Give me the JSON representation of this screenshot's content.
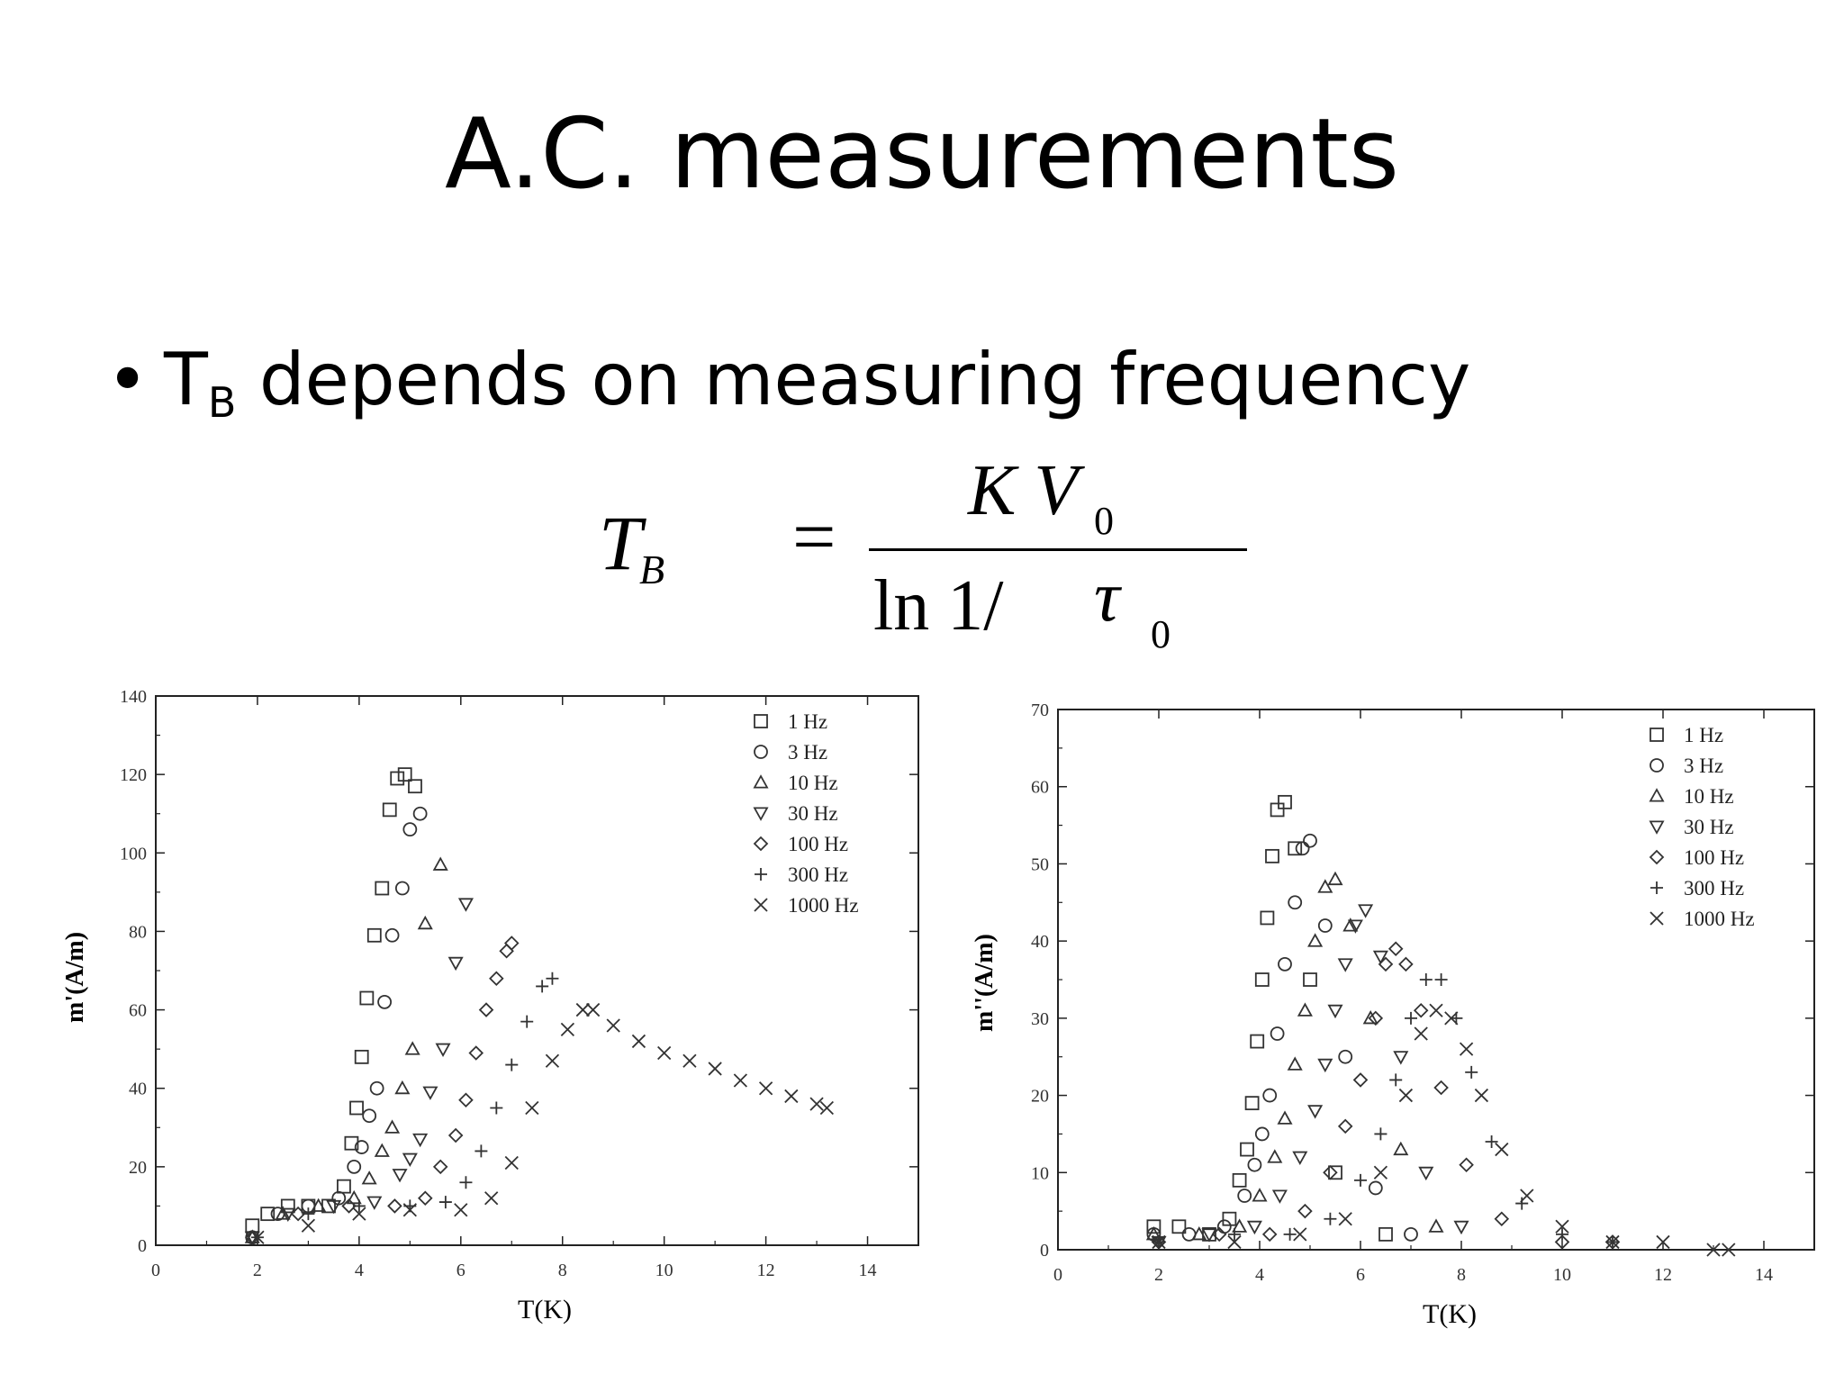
{
  "slide": {
    "title": "A.C. measurements",
    "bullet": {
      "main": "T",
      "subscript": "B",
      "rest": " depends on measuring frequency"
    }
  },
  "formula": {
    "lhs": "T",
    "lhs_sub": "B",
    "equals": "=",
    "numerator": "K V",
    "numerator_sub": "0",
    "denominator": "ln 1/ ",
    "denominator_tau": "τ",
    "denominator_sub": "0"
  },
  "chart_data": [
    {
      "type": "scatter",
      "title": "",
      "xlabel": "T(K)",
      "ylabel": "m'(A/m)",
      "xlim": [
        0,
        15
      ],
      "ylim": [
        0,
        140
      ],
      "xticks": [
        0,
        2,
        4,
        6,
        8,
        10,
        12,
        14
      ],
      "yticks": [
        0,
        20,
        40,
        60,
        80,
        100,
        120,
        140
      ],
      "grid": false,
      "legend": "top-right",
      "series": [
        {
          "name": "1 Hz",
          "marker": "square",
          "x": [
            1.9,
            2.2,
            2.6,
            3.0,
            3.4,
            3.7,
            3.85,
            3.95,
            4.05,
            4.15,
            4.3,
            4.45,
            4.6,
            4.75,
            4.9,
            5.1
          ],
          "y": [
            5,
            8,
            10,
            10,
            10,
            15,
            26,
            35,
            48,
            63,
            79,
            91,
            111,
            119,
            120,
            117
          ]
        },
        {
          "name": "3 Hz",
          "marker": "circle",
          "x": [
            1.9,
            2.4,
            3.0,
            3.6,
            3.9,
            4.05,
            4.2,
            4.35,
            4.5,
            4.65,
            4.85,
            5.0,
            5.2
          ],
          "y": [
            2,
            8,
            10,
            12,
            20,
            25,
            33,
            40,
            62,
            79,
            91,
            106,
            110
          ]
        },
        {
          "name": "10 Hz",
          "marker": "triangle-up",
          "x": [
            1.9,
            2.5,
            3.2,
            3.9,
            4.2,
            4.45,
            4.65,
            4.85,
            5.05,
            5.3,
            5.6
          ],
          "y": [
            2,
            8,
            10,
            12,
            17,
            24,
            30,
            40,
            50,
            82,
            97
          ]
        },
        {
          "name": "30 Hz",
          "marker": "triangle-down",
          "x": [
            1.9,
            2.6,
            3.5,
            4.3,
            4.8,
            5.0,
            5.2,
            5.4,
            5.65,
            5.9,
            6.1
          ],
          "y": [
            2,
            8,
            10,
            11,
            18,
            22,
            27,
            39,
            50,
            72,
            87
          ]
        },
        {
          "name": "100 Hz",
          "marker": "diamond",
          "x": [
            1.9,
            2.8,
            3.8,
            4.7,
            5.3,
            5.6,
            5.9,
            6.1,
            6.3,
            6.5,
            6.7,
            6.9,
            7.0
          ],
          "y": [
            2,
            8,
            10,
            10,
            12,
            20,
            28,
            37,
            49,
            60,
            68,
            75,
            77
          ]
        },
        {
          "name": "300 Hz",
          "marker": "plus",
          "x": [
            2.0,
            3.0,
            4.0,
            5.0,
            5.7,
            6.1,
            6.4,
            6.7,
            7.0,
            7.3,
            7.6,
            7.8
          ],
          "y": [
            2,
            8,
            10,
            10,
            11,
            16,
            24,
            35,
            46,
            57,
            66,
            68
          ]
        },
        {
          "name": "1000 Hz",
          "marker": "cross",
          "x": [
            2.0,
            3.0,
            4.0,
            5.0,
            6.0,
            6.6,
            7.0,
            7.4,
            7.8,
            8.1,
            8.4,
            8.6,
            9.0,
            9.5,
            10.0,
            10.5,
            11.0,
            11.5,
            12.0,
            12.5,
            13.0,
            13.2
          ],
          "y": [
            2,
            5,
            8,
            9,
            9,
            12,
            21,
            35,
            47,
            55,
            60,
            60,
            56,
            52,
            49,
            47,
            45,
            42,
            40,
            38,
            36,
            35
          ]
        }
      ]
    },
    {
      "type": "scatter",
      "title": "",
      "xlabel": "T(K)",
      "ylabel": "m''(A/m)",
      "xlim": [
        0,
        15
      ],
      "ylim": [
        0,
        70
      ],
      "xticks": [
        0,
        2,
        4,
        6,
        8,
        10,
        12,
        14
      ],
      "yticks": [
        0,
        10,
        20,
        30,
        40,
        50,
        60,
        70
      ],
      "grid": false,
      "legend": "top-right",
      "series": [
        {
          "name": "1 Hz",
          "marker": "square",
          "x": [
            1.9,
            2.4,
            3.0,
            3.4,
            3.6,
            3.75,
            3.85,
            3.95,
            4.05,
            4.15,
            4.25,
            4.35,
            4.5,
            4.7,
            5.0,
            5.5,
            6.5
          ],
          "y": [
            3,
            3,
            2,
            4,
            9,
            13,
            19,
            27,
            35,
            43,
            51,
            57,
            58,
            52,
            35,
            10,
            2
          ]
        },
        {
          "name": "3 Hz",
          "marker": "circle",
          "x": [
            1.9,
            2.6,
            3.3,
            3.7,
            3.9,
            4.05,
            4.2,
            4.35,
            4.5,
            4.7,
            4.85,
            5.0,
            5.3,
            5.7,
            6.3,
            7.0
          ],
          "y": [
            2,
            2,
            3,
            7,
            11,
            15,
            20,
            28,
            37,
            45,
            52,
            53,
            42,
            25,
            8,
            2
          ]
        },
        {
          "name": "10 Hz",
          "marker": "triangle-up",
          "x": [
            1.9,
            2.8,
            3.6,
            4.0,
            4.3,
            4.5,
            4.7,
            4.9,
            5.1,
            5.3,
            5.5,
            5.8,
            6.2,
            6.8,
            7.5
          ],
          "y": [
            2,
            2,
            3,
            7,
            12,
            17,
            24,
            31,
            40,
            47,
            48,
            42,
            30,
            13,
            3
          ]
        },
        {
          "name": "30 Hz",
          "marker": "triangle-down",
          "x": [
            2.0,
            3.0,
            3.9,
            4.4,
            4.8,
            5.1,
            5.3,
            5.5,
            5.7,
            5.9,
            6.1,
            6.4,
            6.8,
            7.3,
            8.0
          ],
          "y": [
            1,
            2,
            3,
            7,
            12,
            18,
            24,
            31,
            37,
            42,
            44,
            38,
            25,
            10,
            3
          ]
        },
        {
          "name": "100 Hz",
          "marker": "diamond",
          "x": [
            2.0,
            3.2,
            4.2,
            4.9,
            5.4,
            5.7,
            6.0,
            6.3,
            6.5,
            6.7,
            6.9,
            7.2,
            7.6,
            8.1,
            8.8,
            10.0,
            11.0
          ],
          "y": [
            1,
            2,
            2,
            5,
            10,
            16,
            22,
            30,
            37,
            39,
            37,
            31,
            21,
            11,
            4,
            1,
            1
          ]
        },
        {
          "name": "300 Hz",
          "marker": "plus",
          "x": [
            2.0,
            3.5,
            4.6,
            5.4,
            6.0,
            6.4,
            6.7,
            7.0,
            7.3,
            7.6,
            7.9,
            8.2,
            8.6,
            9.2,
            10.0,
            11.0
          ],
          "y": [
            1,
            2,
            2,
            4,
            9,
            15,
            22,
            30,
            35,
            35,
            30,
            23,
            14,
            6,
            2,
            1
          ]
        },
        {
          "name": "1000 Hz",
          "marker": "cross",
          "x": [
            2.0,
            3.5,
            4.8,
            5.7,
            6.4,
            6.9,
            7.2,
            7.5,
            7.8,
            8.1,
            8.4,
            8.8,
            9.3,
            10.0,
            11.0,
            12.0,
            13.0,
            13.3
          ],
          "y": [
            1,
            1,
            2,
            4,
            10,
            20,
            28,
            31,
            30,
            26,
            20,
            13,
            7,
            3,
            1,
            1,
            0,
            0
          ]
        }
      ]
    }
  ]
}
